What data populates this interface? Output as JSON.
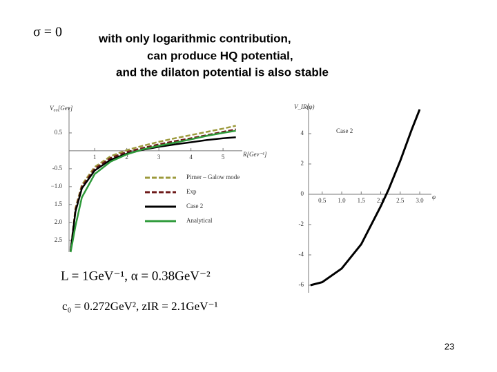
{
  "slide": {
    "sigma": "σ = 0",
    "title": [
      "with only logarithmic contribution,",
      "can produce HQ potential,",
      "and the dilaton potential is also stable"
    ],
    "equations": [
      "L = 1GeV⁻¹, α = 0.38GeV⁻²",
      "c₀ = 0.272GeV², zIR = 2.1GeV⁻¹"
    ],
    "page_number": "23"
  },
  "chart_data": [
    {
      "type": "line",
      "y_label": "V₀₀[Gev]",
      "x_label": "R[Gev⁻¹]",
      "xlim": [
        0.2,
        5.6
      ],
      "ylim": [
        -2.83,
        1.23
      ],
      "xticks": [
        1,
        2,
        3,
        4,
        5
      ],
      "yticks": [
        0.5,
        -0.5,
        {
          "value": -1,
          "label": "−1.0"
        },
        {
          "value": -1.5,
          "label": "1.5"
        },
        {
          "value": -2,
          "label": "2.0"
        },
        {
          "value": -2.5,
          "label": "2.5"
        }
      ],
      "x": [
        0.25,
        0.4,
        0.6,
        1,
        1.5,
        2,
        2.5,
        3,
        3.5,
        4,
        4.5,
        5,
        5.4
      ],
      "series": [
        {
          "name": "Pirner – Galow mode",
          "color": "#9c9a3c",
          "dash": true,
          "values": [
            -2.8,
            -1.6,
            -0.95,
            -0.45,
            -0.15,
            0.02,
            0.14,
            0.25,
            0.35,
            0.44,
            0.53,
            0.62,
            0.7
          ]
        },
        {
          "name": "Exp",
          "color": "#6e1a1a",
          "dash": true,
          "values": [
            -2.8,
            -1.65,
            -1.0,
            -0.5,
            -0.2,
            -0.03,
            0.08,
            0.18,
            0.27,
            0.35,
            0.44,
            0.53,
            0.6
          ]
        },
        {
          "name": "Case 2",
          "color": "#000000",
          "dash": false,
          "values": [
            -2.8,
            -1.7,
            -1.05,
            -0.55,
            -0.25,
            -0.08,
            0.03,
            0.11,
            0.18,
            0.24,
            0.3,
            0.35,
            0.38
          ]
        },
        {
          "name": "Analytical",
          "color": "#2e9a3a",
          "dash": false,
          "values": [
            -2.83,
            -2.1,
            -1.3,
            -0.65,
            -0.3,
            -0.1,
            0.04,
            0.14,
            0.23,
            0.32,
            0.42,
            0.5,
            0.56
          ]
        }
      ]
    },
    {
      "type": "line",
      "y_label": "V_IR(φ)",
      "x_label": "φ",
      "xlim": [
        0.15,
        3.3
      ],
      "ylim": [
        -6.5,
        6
      ],
      "xticks": [
        0.5,
        {
          "value": 1,
          "label": "1.0"
        },
        1.5,
        {
          "value": 2,
          "label": "2.0"
        },
        2.5,
        {
          "value": 3,
          "label": "3.0"
        }
      ],
      "yticks": [
        4,
        2,
        0,
        -2,
        -4,
        -6
      ],
      "x": [
        0.2,
        0.5,
        1.0,
        1.5,
        2.0,
        2.2,
        2.5,
        2.8,
        3.0
      ],
      "series": [
        {
          "name": "Case 2",
          "color": "#000000",
          "dash": false,
          "values": [
            -6.0,
            -5.8,
            -4.9,
            -3.3,
            -0.8,
            0.3,
            2.2,
            4.3,
            5.6
          ]
        }
      ]
    }
  ]
}
